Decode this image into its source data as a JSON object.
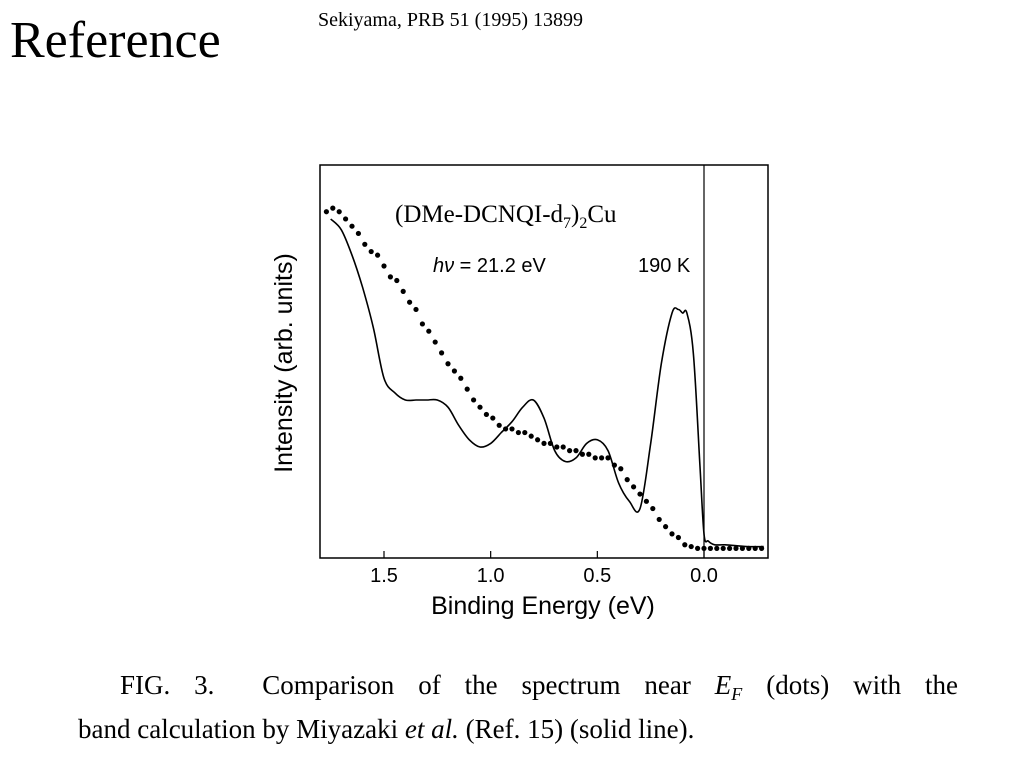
{
  "slide": {
    "title": "Reference",
    "reference": "Sekiyama, PRB 51 (1995) 13899"
  },
  "caption": {
    "fig_label": "FIG. 3.",
    "line1_a": "Comparison of the spectrum near",
    "ef_symbol": "E",
    "ef_sub": "F",
    "line1_b": "(dots) with the",
    "line2_a": "band calculation by Miyazaki",
    "etal": "et al.",
    "line2_b": "(Ref. 15) (solid line)."
  },
  "chart_data": {
    "type": "scatter",
    "title": "",
    "annotations": {
      "compound_main": "(DMe-DCNQI-d",
      "compound_sub1": "7",
      "compound_close": ")",
      "compound_sub2": "2",
      "compound_end": "Cu",
      "photon_symbol": "hν",
      "photon_value": " = 21.2 eV",
      "temperature": "190 K"
    },
    "xlabel": "Binding Energy (eV)",
    "ylabel": "Intensity (arb. units)",
    "x_reversed": true,
    "xlim": [
      1.8,
      -0.3
    ],
    "ylim": [
      0,
      1
    ],
    "xticks": [
      1.5,
      1.0,
      0.5,
      0.0
    ],
    "xtick_labels": [
      "1.5",
      "1.0",
      "0.5",
      "0.0"
    ],
    "fermi_level_line": 0.0,
    "grid": false,
    "legend": "none",
    "series": [
      {
        "style": "dots",
        "x": [
          1.77,
          1.74,
          1.71,
          1.68,
          1.65,
          1.62,
          1.59,
          1.56,
          1.53,
          1.5,
          1.47,
          1.44,
          1.41,
          1.38,
          1.35,
          1.32,
          1.29,
          1.26,
          1.23,
          1.2,
          1.17,
          1.14,
          1.11,
          1.08,
          1.05,
          1.02,
          0.99,
          0.96,
          0.93,
          0.9,
          0.87,
          0.84,
          0.81,
          0.78,
          0.75,
          0.72,
          0.69,
          0.66,
          0.63,
          0.6,
          0.57,
          0.54,
          0.51,
          0.48,
          0.45,
          0.42,
          0.39,
          0.36,
          0.33,
          0.3,
          0.27,
          0.24,
          0.21,
          0.18,
          0.15,
          0.12,
          0.09,
          0.06,
          0.03,
          0.0,
          -0.03,
          -0.06,
          -0.09,
          -0.12,
          -0.15,
          -0.18,
          -0.21,
          -0.24,
          -0.27
        ],
        "y": [
          0.94,
          0.95,
          0.94,
          0.92,
          0.9,
          0.88,
          0.85,
          0.83,
          0.82,
          0.79,
          0.76,
          0.75,
          0.72,
          0.69,
          0.67,
          0.63,
          0.61,
          0.58,
          0.55,
          0.52,
          0.5,
          0.48,
          0.45,
          0.42,
          0.4,
          0.38,
          0.37,
          0.35,
          0.34,
          0.34,
          0.33,
          0.33,
          0.32,
          0.31,
          0.3,
          0.3,
          0.29,
          0.29,
          0.28,
          0.28,
          0.27,
          0.27,
          0.26,
          0.26,
          0.26,
          0.24,
          0.23,
          0.2,
          0.18,
          0.16,
          0.14,
          0.12,
          0.09,
          0.07,
          0.05,
          0.04,
          0.02,
          0.015,
          0.01,
          0.01,
          0.01,
          0.01,
          0.01,
          0.01,
          0.01,
          0.01,
          0.01,
          0.01,
          0.01
        ]
      },
      {
        "style": "line",
        "x": [
          1.75,
          1.7,
          1.65,
          1.6,
          1.55,
          1.5,
          1.45,
          1.4,
          1.35,
          1.3,
          1.25,
          1.2,
          1.15,
          1.1,
          1.05,
          1.0,
          0.95,
          0.9,
          0.85,
          0.8,
          0.75,
          0.7,
          0.65,
          0.6,
          0.55,
          0.5,
          0.45,
          0.4,
          0.35,
          0.3,
          0.25,
          0.2,
          0.15,
          0.12,
          0.1,
          0.08,
          0.05,
          0.02,
          0.0,
          -0.02,
          -0.05,
          -0.1,
          -0.2,
          -0.28
        ],
        "y": [
          0.92,
          0.89,
          0.82,
          0.73,
          0.62,
          0.48,
          0.44,
          0.42,
          0.42,
          0.42,
          0.42,
          0.4,
          0.35,
          0.31,
          0.29,
          0.3,
          0.33,
          0.36,
          0.4,
          0.42,
          0.37,
          0.28,
          0.25,
          0.26,
          0.3,
          0.31,
          0.28,
          0.19,
          0.14,
          0.12,
          0.3,
          0.52,
          0.66,
          0.67,
          0.66,
          0.66,
          0.55,
          0.25,
          0.05,
          0.03,
          0.02,
          0.02,
          0.015,
          0.015
        ]
      }
    ]
  }
}
